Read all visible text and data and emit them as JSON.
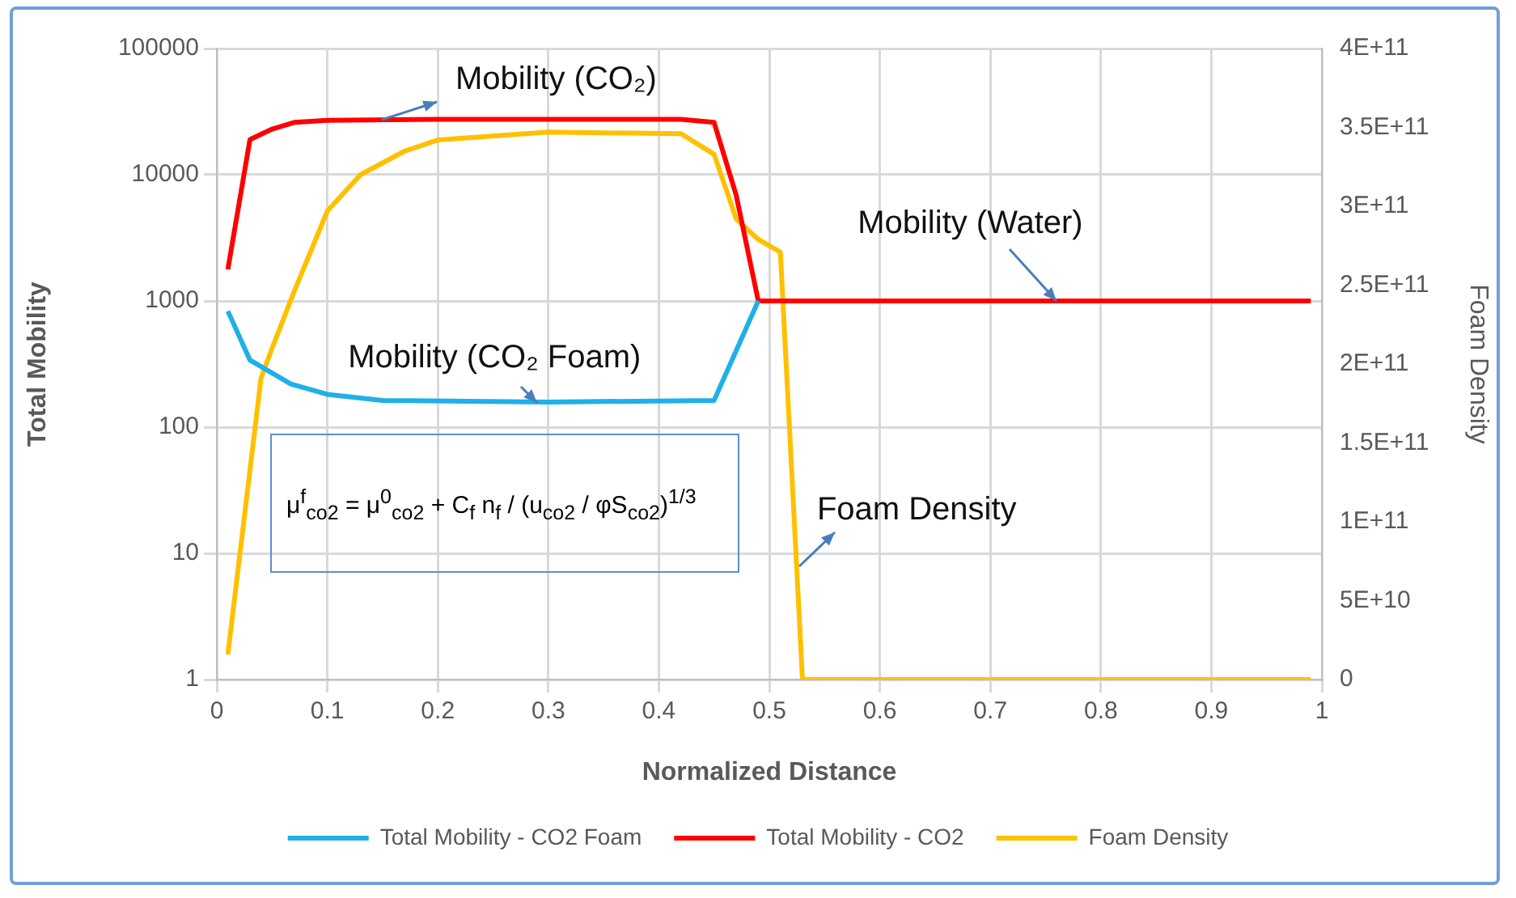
{
  "chart_data": {
    "type": "line",
    "xlabel": "Normalized Distance",
    "ylabel": "Total Mobility",
    "y2label": "Foam Density",
    "xlim": [
      0,
      1
    ],
    "xticks": [
      0,
      0.1,
      0.2,
      0.3,
      0.4,
      0.5,
      0.6,
      0.7,
      0.8,
      0.9,
      1
    ],
    "ylim": [
      1,
      100000
    ],
    "yticks": [
      1,
      10,
      100,
      1000,
      10000,
      100000
    ],
    "log": "y",
    "y2lim": [
      0,
      400000000000
    ],
    "y2ticks": [
      {
        "value": 0,
        "label": "0"
      },
      {
        "value": 50000000000,
        "label": "5E+10"
      },
      {
        "value": 100000000000,
        "label": "1E+11"
      },
      {
        "value": 150000000000,
        "label": "1.5E+11"
      },
      {
        "value": 200000000000,
        "label": "2E+11"
      },
      {
        "value": 250000000000,
        "label": "2.5E+11"
      },
      {
        "value": 300000000000,
        "label": "3E+11"
      },
      {
        "value": 350000000000,
        "label": "3.5E+11"
      },
      {
        "value": 400000000000,
        "label": "4E+11"
      }
    ],
    "grid": true,
    "legend": "bottom",
    "marker": "none",
    "line_style": "solid",
    "series": [
      {
        "name": "Total Mobility - CO2 Foam",
        "color": "#1fb0e8",
        "x": [
          0.01,
          0.03,
          0.067,
          0.1,
          0.15,
          0.3,
          0.45,
          0.49
        ],
        "values": [
          830,
          340,
          220,
          182,
          163,
          158,
          163,
          1000
        ]
      },
      {
        "name": "Total Mobility - CO2",
        "color": "#ff0000",
        "x": [
          0.01,
          0.03,
          0.05,
          0.07,
          0.1,
          0.2,
          0.3,
          0.42,
          0.45,
          0.47,
          0.49,
          0.99
        ],
        "values": [
          1780,
          19000,
          23000,
          26000,
          27000,
          27500,
          27500,
          27500,
          26000,
          6900,
          1000,
          1000
        ]
      },
      {
        "name": "Foam Density",
        "color": "#ffc000",
        "axis": "y2",
        "x": [
          0.01,
          0.04,
          0.05,
          0.07,
          0.1,
          0.13,
          0.17,
          0.2,
          0.3,
          0.42,
          0.45,
          0.47,
          0.49,
          0.51,
          0.53,
          0.99
        ],
        "values": [
          16000000000,
          191000000000,
          210000000000,
          246000000000,
          297000000000,
          320000000000,
          335000000000,
          342000000000,
          347000000000,
          346000000000,
          333000000000,
          292000000000,
          279000000000,
          271000000000,
          0,
          0
        ]
      }
    ],
    "annotations": [
      {
        "text": "Mobility (CO₂)",
        "x": 0.15,
        "y": 27500
      },
      {
        "text": "Mobility (Water)",
        "x": 0.76,
        "y": 1000
      },
      {
        "text": "Mobility (CO₂ Foam)",
        "x": 0.29,
        "y": 158
      },
      {
        "text": "Foam Density",
        "x": 0.527,
        "y": 8
      },
      "μ$^{f}$$_{co2}$ = μ$^{0}$$_{co2}$ + C$_{f}$ n$_{f}$ / (u$_{co2}$ / φS$_{co2}$)$^{1/3}$"
    ]
  }
}
